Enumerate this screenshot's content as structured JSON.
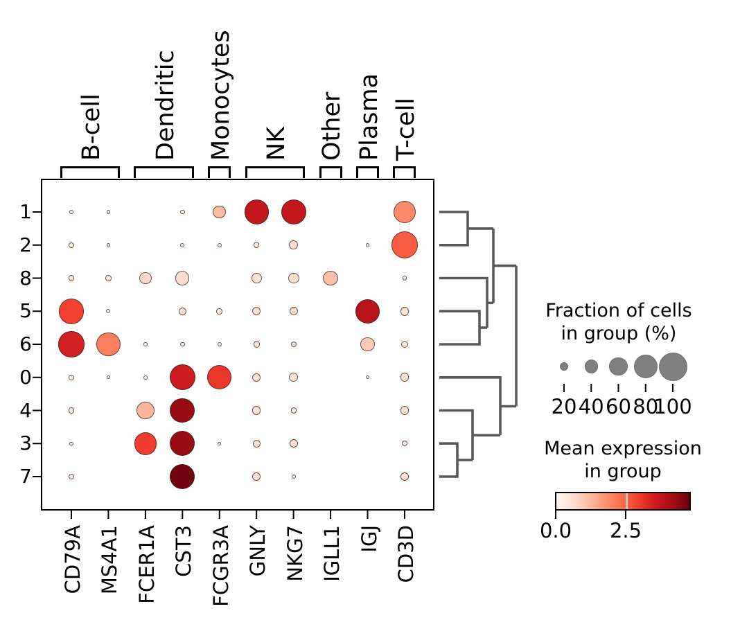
{
  "chart_data": {
    "type": "dotplot",
    "description": "scanpy-style dot plot: mean expression (color, Reds colormap) and fraction of expressing cells (dot size) per gene per cluster, with gene-group brackets on top and a cluster dendrogram on the right",
    "rows": [
      "1",
      "2",
      "8",
      "5",
      "6",
      "0",
      "4",
      "3",
      "7"
    ],
    "genes": [
      "CD79A",
      "MS4A1",
      "FCER1A",
      "CST3",
      "FCGR3A",
      "GNLY",
      "NKG7",
      "IGLL1",
      "IGJ",
      "CD3D"
    ],
    "gene_groups": [
      {
        "label": "B-cell",
        "start": 0,
        "end": 1
      },
      {
        "label": "Dendritic",
        "start": 2,
        "end": 3
      },
      {
        "label": "Monocytes",
        "start": 4,
        "end": 4
      },
      {
        "label": "NK",
        "start": 5,
        "end": 6
      },
      {
        "label": "Other",
        "start": 7,
        "end": 7
      },
      {
        "label": "Plasma",
        "start": 8,
        "end": 8
      },
      {
        "label": "T-cell",
        "start": 9,
        "end": 9
      }
    ],
    "cells_format": "[fraction_of_cells_pct, mean_expression] or null if no dot drawn",
    "cells": [
      [
        [
          2,
          0.3
        ],
        [
          1,
          0.2
        ],
        null,
        [
          4,
          0.4
        ],
        [
          38,
          1.2
        ],
        [
          84,
          3.8
        ],
        [
          86,
          3.8
        ],
        null,
        null,
        [
          77,
          1.95
        ]
      ],
      [
        [
          8,
          0.4
        ],
        [
          2,
          0.2
        ],
        null,
        [
          3,
          0.3
        ],
        [
          2,
          0.2
        ],
        [
          10,
          0.5
        ],
        [
          22,
          0.65
        ],
        null,
        [
          2,
          0.2
        ],
        [
          94,
          2.6
        ]
      ],
      [
        [
          10,
          0.4
        ],
        [
          9,
          0.4
        ],
        [
          36,
          0.7
        ],
        [
          42,
          0.65
        ],
        null,
        [
          27,
          0.55
        ],
        [
          30,
          0.6
        ],
        [
          47,
          1.15
        ],
        null,
        [
          5,
          0.3
        ]
      ],
      [
        [
          88,
          2.95
        ],
        [
          3,
          0.2
        ],
        null,
        [
          18,
          0.5
        ],
        [
          10,
          0.4
        ],
        [
          20,
          0.55
        ],
        [
          20,
          0.55
        ],
        null,
        [
          83,
          3.95
        ],
        [
          21,
          0.5
        ]
      ],
      [
        [
          89,
          3.5
        ],
        [
          83,
          2.1
        ],
        [
          1,
          0.2
        ],
        [
          4,
          0.3
        ],
        [
          4,
          0.3
        ],
        [
          12,
          0.5
        ],
        [
          9,
          0.45
        ],
        null,
        [
          42,
          0.95
        ],
        [
          15,
          0.5
        ]
      ],
      [
        [
          7,
          0.35
        ],
        [
          1,
          0.15
        ],
        [
          3,
          0.25
        ],
        [
          88,
          3.6
        ],
        [
          83,
          3.1
        ],
        [
          20,
          0.5
        ],
        [
          21,
          0.5
        ],
        null,
        [
          1,
          0.15
        ],
        [
          21,
          0.5
        ]
      ],
      [
        [
          10,
          0.4
        ],
        null,
        [
          58,
          1.3
        ],
        [
          86,
          4.35
        ],
        null,
        [
          21,
          0.5
        ],
        [
          9,
          0.4
        ],
        null,
        null,
        [
          21,
          0.5
        ]
      ],
      [
        [
          1,
          0.2
        ],
        null,
        [
          77,
          3.0
        ],
        [
          86,
          4.35
        ],
        [
          1,
          0.2
        ],
        [
          17,
          0.5
        ],
        [
          19,
          0.5
        ],
        null,
        null,
        [
          9,
          0.4
        ]
      ],
      [
        [
          9,
          0.4
        ],
        null,
        null,
        [
          86,
          4.75
        ],
        null,
        [
          19,
          0.5
        ],
        [
          3,
          0.3
        ],
        null,
        null,
        [
          19,
          0.5
        ]
      ]
    ],
    "size_legend": {
      "title_line1": "Fraction of cells",
      "title_line2": "in group (%)",
      "tick_labels": [
        "20",
        "40",
        "60",
        "80",
        "100"
      ],
      "tick_values": [
        20,
        40,
        60,
        80,
        100
      ]
    },
    "color_legend": {
      "title_line1": "Mean expression",
      "title_line2": "in group",
      "tick_labels": [
        "0.0",
        "2.5"
      ],
      "vmin": 0.0,
      "vmax": 4.85,
      "colormap": "Reds"
    },
    "colors": {
      "dot_edge": "#2d2826",
      "dendrogram_line": "#595959",
      "legend_dot_fill": "#808080",
      "axis_line": "#000000"
    }
  }
}
